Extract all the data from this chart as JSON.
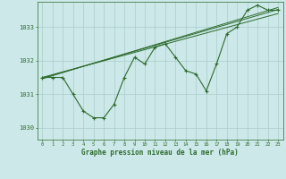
{
  "title": "Graphe pression niveau de la mer (hPa)",
  "background_color": "#cce8e8",
  "grid_color": "#aacccc",
  "line_color": "#2d6b2d",
  "xlim": [
    -0.5,
    23.5
  ],
  "ylim": [
    1029.65,
    1033.75
  ],
  "yticks": [
    1030,
    1031,
    1032,
    1033
  ],
  "xticks": [
    0,
    1,
    2,
    3,
    4,
    5,
    6,
    7,
    8,
    9,
    10,
    11,
    12,
    13,
    14,
    15,
    16,
    17,
    18,
    19,
    20,
    21,
    22,
    23
  ],
  "main_series": [
    1031.5,
    1031.5,
    1031.5,
    1031.0,
    1030.5,
    1030.3,
    1030.3,
    1030.7,
    1031.5,
    1032.1,
    1031.9,
    1032.4,
    1032.5,
    1032.1,
    1031.7,
    1031.6,
    1031.1,
    1031.9,
    1032.8,
    1033.0,
    1033.5,
    1033.65,
    1033.5,
    1033.5
  ],
  "trend_lines": [
    [
      1031.5,
      1033.4
    ],
    [
      1031.48,
      1033.52
    ],
    [
      1031.46,
      1033.58
    ]
  ]
}
